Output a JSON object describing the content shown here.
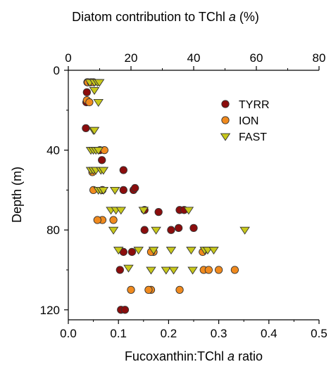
{
  "chart_data": {
    "type": "scatter",
    "top_axis": {
      "label_main": "Diatom contribution to TChl ",
      "label_italic": "a",
      "label_tail": " (%)",
      "range": [
        0,
        80
      ],
      "ticks": [
        0,
        20,
        40,
        60,
        80
      ],
      "tick_labels": [
        "0",
        "20",
        "40",
        "60",
        "80"
      ]
    },
    "x_axis": {
      "label_main": "Fucoxanthin:TChl ",
      "label_italic": "a",
      "label_tail": " ratio",
      "range": [
        0.0,
        0.5
      ],
      "ticks": [
        0.0,
        0.1,
        0.2,
        0.3,
        0.4,
        0.5
      ],
      "tick_labels": [
        "0.0",
        "0.1",
        "0.2",
        "0.3",
        "0.4",
        "0.5"
      ]
    },
    "y_axis": {
      "label": "Depth (m)",
      "range": [
        0,
        125
      ],
      "reversed": true,
      "ticks": [
        0,
        40,
        80,
        120
      ],
      "tick_labels": [
        "0",
        "40",
        "80",
        "120"
      ]
    },
    "legend_position": "top-right",
    "series": [
      {
        "name": "TYRR",
        "marker": "circle",
        "color": "#8b0d0d",
        "points": [
          [
            0.038,
            6
          ],
          [
            0.037,
            11
          ],
          [
            0.036,
            16
          ],
          [
            0.035,
            29
          ],
          [
            0.067,
            45
          ],
          [
            0.063,
            40
          ],
          [
            0.11,
            50
          ],
          [
            0.068,
            60
          ],
          [
            0.11,
            60
          ],
          [
            0.13,
            60
          ],
          [
            0.133,
            59
          ],
          [
            0.152,
            70
          ],
          [
            0.18,
            71
          ],
          [
            0.222,
            70
          ],
          [
            0.231,
            70
          ],
          [
            0.152,
            80
          ],
          [
            0.205,
            80
          ],
          [
            0.22,
            79
          ],
          [
            0.25,
            79
          ],
          [
            0.11,
            91
          ],
          [
            0.127,
            91
          ],
          [
            0.103,
            100
          ],
          [
            0.105,
            120
          ],
          [
            0.113,
            120
          ]
        ]
      },
      {
        "name": "ION",
        "marker": "circle",
        "color": "#f08a1e",
        "points": [
          [
            0.039,
            6
          ],
          [
            0.045,
            6
          ],
          [
            0.05,
            6
          ],
          [
            0.037,
            15
          ],
          [
            0.042,
            16
          ],
          [
            0.072,
            40
          ],
          [
            0.048,
            51
          ],
          [
            0.05,
            60
          ],
          [
            0.068,
            75
          ],
          [
            0.058,
            75
          ],
          [
            0.09,
            75
          ],
          [
            0.17,
            91
          ],
          [
            0.165,
            91
          ],
          [
            0.268,
            91
          ],
          [
            0.27,
            100
          ],
          [
            0.28,
            100
          ],
          [
            0.3,
            100
          ],
          [
            0.332,
            100
          ],
          [
            0.165,
            110
          ],
          [
            0.16,
            110
          ],
          [
            0.125,
            110
          ],
          [
            0.222,
            110
          ]
        ]
      },
      {
        "name": "FAST",
        "marker": "triangle-down",
        "color": "#c8c81a",
        "points": [
          [
            0.043,
            6
          ],
          [
            0.052,
            6
          ],
          [
            0.058,
            6
          ],
          [
            0.062,
            6
          ],
          [
            0.052,
            10
          ],
          [
            0.06,
            16
          ],
          [
            0.05,
            30
          ],
          [
            0.052,
            30
          ],
          [
            0.045,
            40
          ],
          [
            0.05,
            40
          ],
          [
            0.055,
            40
          ],
          [
            0.06,
            40
          ],
          [
            0.045,
            50
          ],
          [
            0.05,
            50
          ],
          [
            0.055,
            50
          ],
          [
            0.065,
            50
          ],
          [
            0.07,
            50
          ],
          [
            0.06,
            60
          ],
          [
            0.065,
            60
          ],
          [
            0.07,
            60
          ],
          [
            0.093,
            60
          ],
          [
            0.085,
            70
          ],
          [
            0.095,
            70
          ],
          [
            0.105,
            70
          ],
          [
            0.09,
            80
          ],
          [
            0.15,
            70
          ],
          [
            0.24,
            70
          ],
          [
            0.175,
            80
          ],
          [
            0.352,
            80
          ],
          [
            0.1,
            90
          ],
          [
            0.14,
            90
          ],
          [
            0.17,
            90
          ],
          [
            0.205,
            90
          ],
          [
            0.245,
            90
          ],
          [
            0.272,
            90
          ],
          [
            0.278,
            90
          ],
          [
            0.29,
            90
          ],
          [
            0.12,
            99
          ],
          [
            0.165,
            100
          ],
          [
            0.195,
            100
          ],
          [
            0.21,
            100
          ],
          [
            0.248,
            100
          ]
        ]
      }
    ]
  }
}
